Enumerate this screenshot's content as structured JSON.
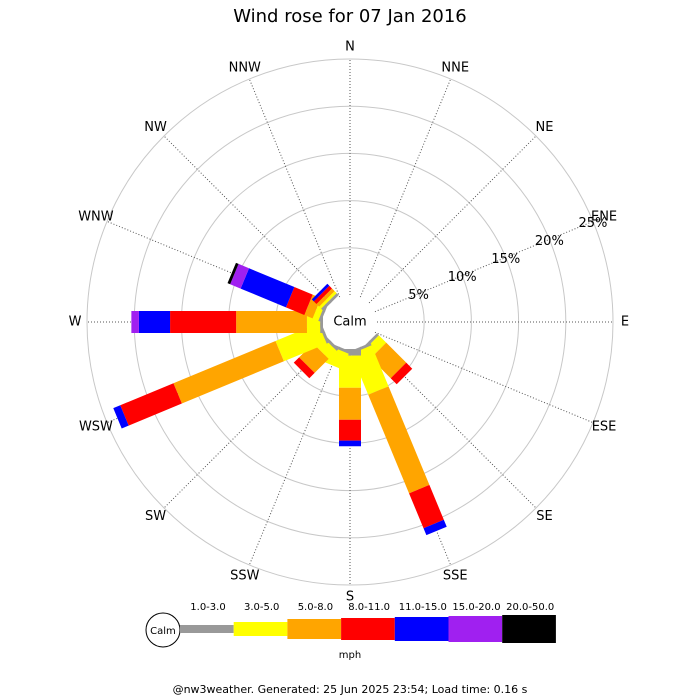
{
  "chart_data": {
    "type": "windrose",
    "title": "Wind rose for 07 Jan 2016",
    "categories": [
      "N",
      "NNE",
      "NE",
      "ENE",
      "E",
      "ESE",
      "SE",
      "SSE",
      "S",
      "SSW",
      "SW",
      "WSW",
      "W",
      "WNW",
      "NW",
      "NNW"
    ],
    "series": [
      {
        "name": "1.0-3.0",
        "color": "#999999",
        "values": [
          0,
          0,
          0,
          0,
          0,
          0,
          0.3,
          0.3,
          0.7,
          0.3,
          0.3,
          0.3,
          0.3,
          0.3,
          0.3,
          0
        ]
      },
      {
        "name": "3.0-5.0",
        "color": "#ffff00",
        "values": [
          0,
          0,
          0,
          0,
          0,
          0,
          1.1,
          4.7,
          3.4,
          1.8,
          1.2,
          4.9,
          1.4,
          0.65,
          0.3,
          0
        ]
      },
      {
        "name": "5.0-8.0",
        "color": "#ffa500",
        "values": [
          0,
          0,
          0,
          0,
          0,
          0,
          3.0,
          11.3,
          3.4,
          0,
          2.1,
          11.7,
          7.5,
          0.95,
          0.4,
          0
        ]
      },
      {
        "name": "8.0-11.0",
        "color": "#ff0000",
        "values": [
          0,
          0,
          0,
          0,
          0,
          0,
          0.9,
          4.0,
          2.2,
          0,
          0.8,
          6.1,
          7.0,
          2.1,
          0.4,
          0
        ]
      },
      {
        "name": "11.0-15.0",
        "color": "#0000ff",
        "values": [
          0,
          0,
          0,
          0,
          0,
          0,
          0,
          0.8,
          0.6,
          0,
          0,
          0.8,
          3.3,
          5.2,
          0.3,
          0
        ]
      },
      {
        "name": "15.0-20.0",
        "color": "#a020f0",
        "values": [
          0,
          0,
          0,
          0,
          0,
          0,
          0,
          0,
          0,
          0,
          0,
          0,
          0.8,
          1.2,
          0,
          0
        ]
      },
      {
        "name": "20.0-50.0",
        "color": "#000000",
        "values": [
          0,
          0,
          0,
          0,
          0,
          0,
          0,
          0,
          0,
          0,
          0,
          0,
          0,
          0.3,
          0,
          0
        ]
      }
    ],
    "rlim": [
      0,
      25
    ],
    "rticks": [
      {
        "value": 5,
        "label": "5%"
      },
      {
        "value": 10,
        "label": "10%"
      },
      {
        "value": 15,
        "label": "15%"
      },
      {
        "value": 20,
        "label": "20%"
      },
      {
        "value": 25,
        "label": "25%"
      }
    ],
    "calm_label": "Calm",
    "unit": "mph",
    "footer": "@nw3weather. Generated: 25 Jun 2025 23:54; Load time: 0.16 s"
  }
}
